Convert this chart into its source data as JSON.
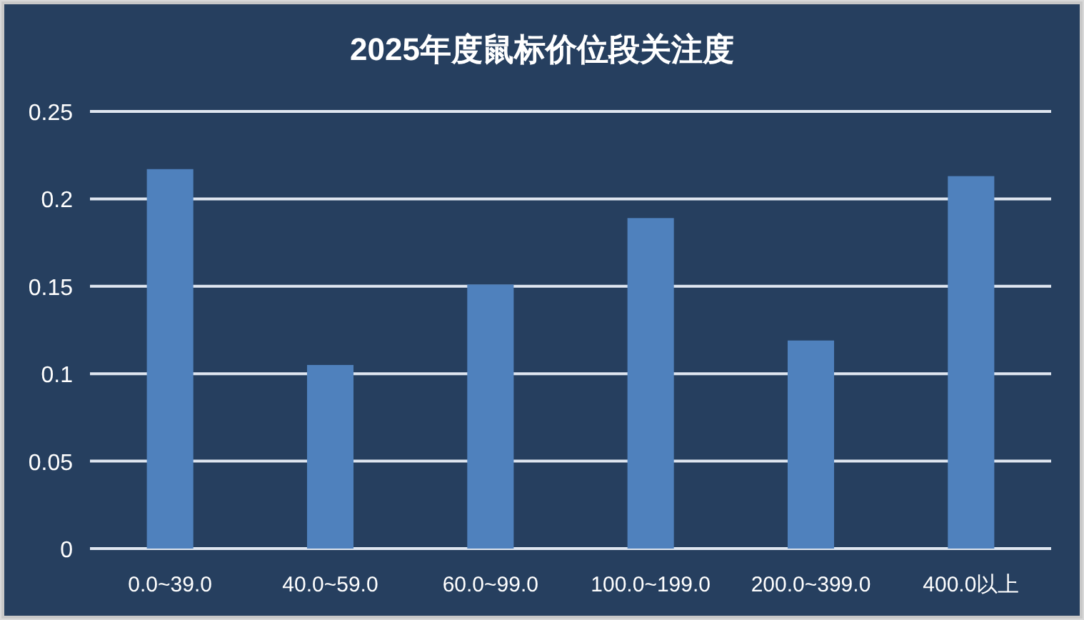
{
  "chart_data": {
    "type": "bar",
    "title": "2025年度鼠标价位段关注度",
    "categories": [
      "0.0~39.0",
      "40.0~59.0",
      "60.0~99.0",
      "100.0~199.0",
      "200.0~399.0",
      "400.0以上"
    ],
    "values": [
      0.217,
      0.105,
      0.151,
      0.189,
      0.119,
      0.213
    ],
    "color": "#4f81bd",
    "ylim": [
      0,
      0.25
    ],
    "yticks": [
      0,
      0.05,
      0.1,
      0.15,
      0.2,
      0.25
    ],
    "grid": "y"
  }
}
